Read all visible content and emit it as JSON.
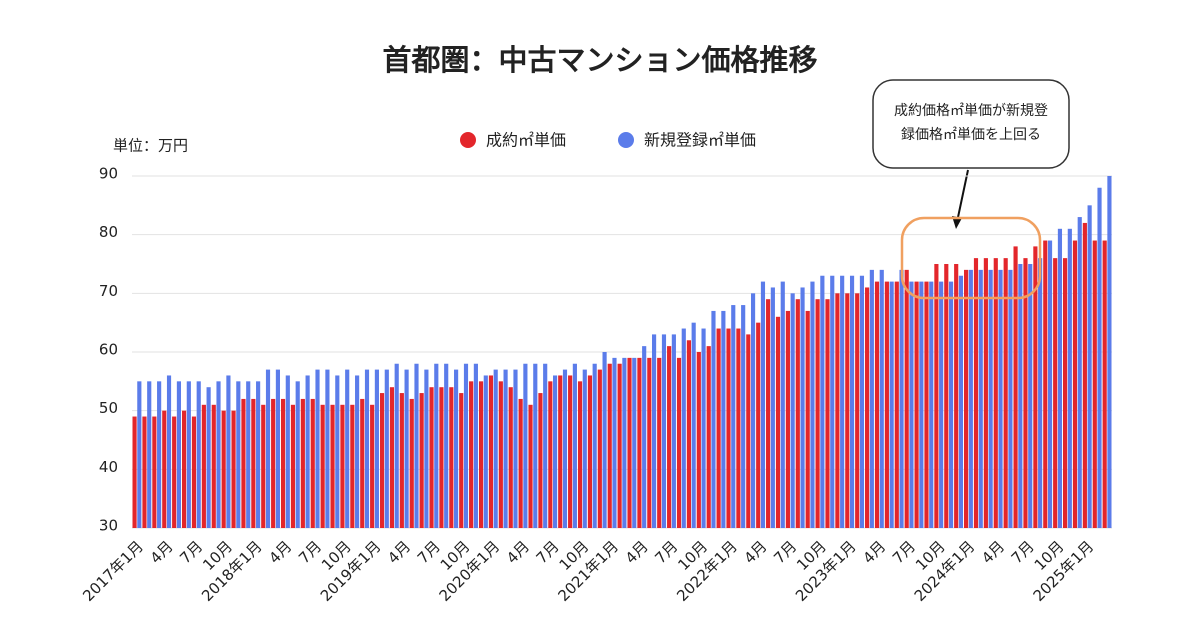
{
  "chart_data": {
    "type": "bar",
    "title": "首都圏：中古マンション価格推移",
    "unit_label": "単位：万円",
    "annotation": [
      "成約価格㎡単価が新規登",
      "録価格㎡単価を上回る"
    ],
    "categories": [
      "2017年1月",
      null,
      null,
      "4月",
      null,
      null,
      "7月",
      null,
      null,
      "10月",
      null,
      null,
      "2018年1月",
      null,
      null,
      "4月",
      null,
      null,
      "7月",
      null,
      null,
      "10月",
      null,
      null,
      "2019年1月",
      null,
      null,
      "4月",
      null,
      null,
      "7月",
      null,
      null,
      "10月",
      null,
      null,
      "2020年1月",
      null,
      null,
      "4月",
      null,
      null,
      "7月",
      null,
      null,
      "10月",
      null,
      null,
      "2021年1月",
      null,
      null,
      "4月",
      null,
      null,
      "7月",
      null,
      null,
      "10月",
      null,
      null,
      "2022年1月",
      null,
      null,
      "4月",
      null,
      null,
      "7月",
      null,
      null,
      "10月",
      null,
      null,
      "2023年1月",
      null,
      null,
      "4月",
      null,
      null,
      "7月",
      null,
      null,
      "10月",
      null,
      null,
      "2024年1月",
      null,
      null,
      "4月",
      null,
      null,
      "7月",
      null,
      null,
      "10月",
      null,
      null,
      "2025年1月",
      null,
      null
    ],
    "series": [
      {
        "name": "成約㎡単価",
        "color": "#e3262b",
        "values": [
          49,
          49,
          49,
          50,
          49,
          50,
          49,
          51,
          51,
          50,
          50,
          52,
          52,
          51,
          52,
          52,
          51,
          52,
          52,
          51,
          51,
          51,
          51,
          52,
          51,
          53,
          54,
          53,
          52,
          53,
          54,
          54,
          54,
          53,
          55,
          55,
          56,
          55,
          54,
          52,
          51,
          53,
          55,
          56,
          56,
          55,
          56,
          57,
          58,
          58,
          59,
          59,
          59,
          59,
          61,
          59,
          62,
          60,
          61,
          64,
          64,
          64,
          63,
          65,
          69,
          66,
          67,
          69,
          67,
          69,
          69,
          70,
          70,
          70,
          71,
          72,
          72,
          72,
          74,
          72,
          72,
          75,
          75,
          75,
          74,
          76,
          76,
          76,
          76,
          78,
          76,
          78,
          79,
          76,
          76,
          79,
          82,
          79,
          79
        ]
      },
      {
        "name": "新規登録㎡単価",
        "color": "#5b7cea",
        "values": [
          55,
          55,
          55,
          56,
          55,
          55,
          55,
          54,
          55,
          56,
          55,
          55,
          55,
          57,
          57,
          56,
          55,
          56,
          57,
          57,
          56,
          57,
          56,
          57,
          57,
          57,
          58,
          57,
          58,
          57,
          58,
          58,
          57,
          58,
          58,
          56,
          57,
          57,
          57,
          58,
          58,
          58,
          56,
          57,
          58,
          57,
          58,
          60,
          59,
          59,
          59,
          61,
          63,
          63,
          63,
          64,
          65,
          64,
          67,
          67,
          68,
          68,
          70,
          72,
          71,
          72,
          70,
          71,
          72,
          73,
          73,
          73,
          73,
          73,
          74,
          74,
          72,
          74,
          72,
          72,
          72,
          72,
          72,
          73,
          74,
          74,
          74,
          74,
          74,
          75,
          75,
          76,
          79,
          81,
          81,
          83,
          85,
          88,
          90
        ]
      }
    ],
    "ylim": [
      30,
      90
    ],
    "yticks": [
      30,
      40,
      50,
      60,
      70,
      80,
      90
    ],
    "grid": true
  }
}
